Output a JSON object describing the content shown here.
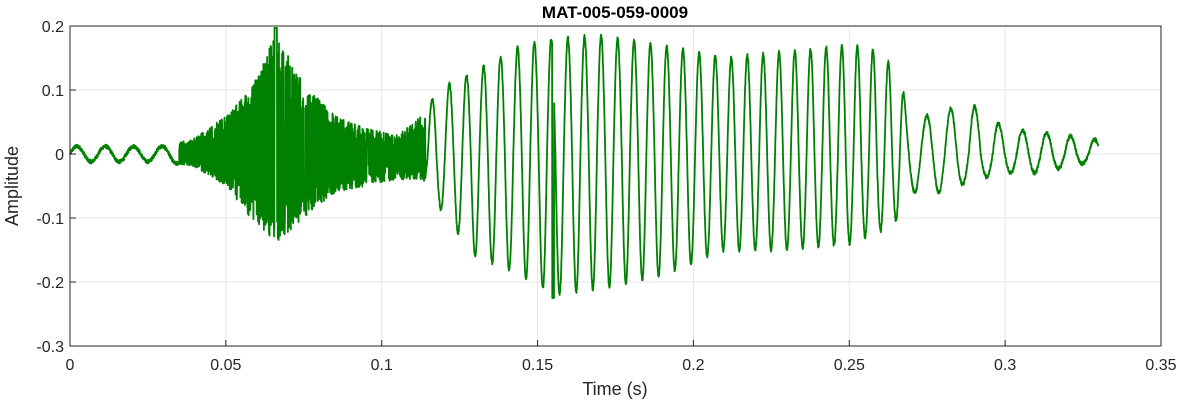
{
  "chart_data": {
    "type": "line",
    "title": "MAT-005-059-0009",
    "xlabel": "Time (s)",
    "ylabel": "Amplitude",
    "xlim": [
      0,
      0.35
    ],
    "ylim": [
      -0.3,
      0.2
    ],
    "xticks": [
      0,
      0.05,
      0.1,
      0.15,
      0.2,
      0.25,
      0.3,
      0.35
    ],
    "xtick_labels": [
      "0",
      "0.05",
      "0.1",
      "0.15",
      "0.2",
      "0.25",
      "0.3",
      "0.35"
    ],
    "yticks": [
      -0.3,
      -0.2,
      -0.1,
      0,
      0.1,
      0.2
    ],
    "ytick_labels": [
      "-0.3",
      "-0.2",
      "-0.1",
      "0",
      "0.1",
      "0.2"
    ],
    "grid": true,
    "series": [
      {
        "color": "#008000",
        "x_range": [
          0,
          0.33
        ],
        "envelope": {
          "t": [
            0,
            0.03,
            0.04,
            0.05,
            0.058,
            0.066,
            0.075,
            0.085,
            0.095,
            0.105,
            0.113,
            0.118,
            0.13,
            0.145,
            0.155,
            0.17,
            0.19,
            0.21,
            0.23,
            0.25,
            0.26,
            0.266,
            0.27,
            0.28,
            0.29,
            0.3,
            0.31,
            0.33
          ],
          "pos": [
            0.012,
            0.012,
            0.025,
            0.06,
            0.1,
            0.19,
            0.11,
            0.06,
            0.04,
            0.03,
            0.06,
            0.1,
            0.13,
            0.17,
            0.18,
            0.185,
            0.17,
            0.15,
            0.16,
            0.17,
            0.16,
            0.12,
            0.05,
            0.07,
            0.075,
            0.04,
            0.035,
            0.022
          ],
          "neg": [
            -0.012,
            -0.012,
            -0.02,
            -0.05,
            -0.1,
            -0.14,
            -0.1,
            -0.06,
            -0.05,
            -0.04,
            -0.04,
            -0.08,
            -0.16,
            -0.19,
            -0.22,
            -0.21,
            -0.19,
            -0.15,
            -0.15,
            -0.14,
            -0.12,
            -0.1,
            -0.06,
            -0.06,
            -0.04,
            -0.03,
            -0.03,
            -0.01
          ]
        },
        "peaks": {
          "max": 0.197,
          "max_t": 0.066,
          "min": -0.225,
          "min_t": 0.155
        }
      }
    ]
  }
}
